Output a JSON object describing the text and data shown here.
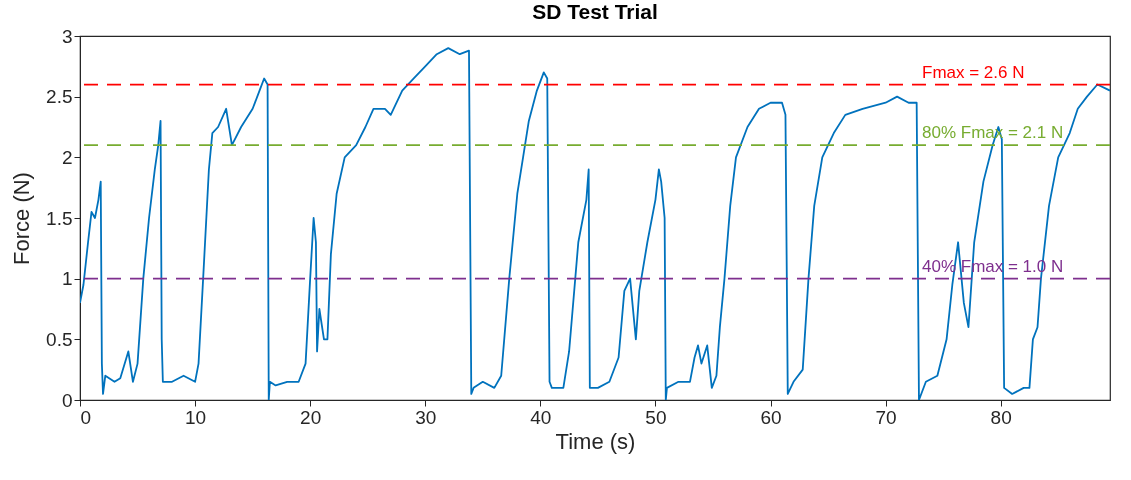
{
  "chart_data": {
    "type": "line",
    "title": "SD Test Trial",
    "xlabel": "Time (s)",
    "ylabel": "Force (N)",
    "xlim": [
      0,
      89.5
    ],
    "xticks": [
      0,
      10,
      20,
      30,
      40,
      50,
      60,
      70,
      80
    ],
    "ylim": [
      0,
      3
    ],
    "yticks": [
      0,
      0.5,
      1,
      1.5,
      2,
      2.5,
      3
    ],
    "grid": false,
    "marker": "none",
    "line_style": "solid",
    "x": [
      0,
      0.3,
      0.7,
      1.0,
      1.3,
      1.6,
      1.8,
      1.9,
      2.0,
      2.2,
      3.0,
      3.5,
      4.2,
      4.6,
      5.0,
      5.5,
      6.0,
      6.5,
      6.8,
      7.0,
      7.1,
      7.2,
      8,
      9,
      10,
      10.3,
      10.7,
      11.2,
      11.5,
      12,
      12.7,
      13.2,
      14,
      15,
      15.6,
      16.0,
      16.3,
      16.4,
      16.5,
      17,
      18,
      19,
      19.6,
      20.0,
      20.3,
      20.5,
      20.6,
      20.8,
      21.2,
      21.5,
      21.8,
      22.3,
      23,
      24,
      24.8,
      25.5,
      26.5,
      27,
      28,
      29,
      30,
      31,
      32,
      33,
      33.8,
      34.0,
      34.2,
      35,
      36,
      36.6,
      37.3,
      38,
      38.5,
      39,
      39.7,
      40.3,
      40.6,
      40.8,
      41,
      42,
      42.5,
      43.3,
      44,
      44.2,
      44.3,
      45,
      46,
      46.8,
      47.3,
      47.8,
      48.3,
      48.6,
      49.3,
      50,
      50.3,
      50.5,
      50.8,
      50.9,
      51,
      52,
      53,
      53.4,
      53.7,
      54,
      54.5,
      54.9,
      55.3,
      55.6,
      56,
      56.5,
      57,
      58,
      59,
      60,
      61,
      61.3,
      61.5,
      62,
      62.8,
      63.3,
      63.8,
      64.5,
      65.5,
      66.5,
      68,
      70,
      71,
      72,
      72.7,
      72.9,
      73.5,
      74.5,
      75.3,
      75.8,
      76.3,
      76.8,
      77.2,
      77.7,
      78.5,
      79.3,
      79.8,
      80.1,
      80.3,
      81,
      82,
      82.5,
      82.8,
      83.2,
      83.5,
      84.2,
      85,
      86,
      86.7,
      87.5,
      88.4,
      89.5
    ],
    "series": [
      {
        "color": "#0072bd",
        "values": [
          0.8,
          0.95,
          1.3,
          1.55,
          1.5,
          1.65,
          1.8,
          0.3,
          0.05,
          0.2,
          0.15,
          0.18,
          0.4,
          0.15,
          0.3,
          1.0,
          1.5,
          1.9,
          2.1,
          2.3,
          0.5,
          0.15,
          0.15,
          0.2,
          0.15,
          0.3,
          1.0,
          1.9,
          2.2,
          2.25,
          2.4,
          2.1,
          2.25,
          2.4,
          2.55,
          2.65,
          2.6,
          0.0,
          0.15,
          0.12,
          0.15,
          0.15,
          0.3,
          1.0,
          1.5,
          1.3,
          0.4,
          0.75,
          0.5,
          0.5,
          1.2,
          1.7,
          2.0,
          2.1,
          2.25,
          2.4,
          2.4,
          2.35,
          2.55,
          2.65,
          2.75,
          2.85,
          2.9,
          2.85,
          2.88,
          0.05,
          0.1,
          0.15,
          0.1,
          0.2,
          1.0,
          1.7,
          2.0,
          2.3,
          2.55,
          2.7,
          2.65,
          0.15,
          0.1,
          0.1,
          0.4,
          1.3,
          1.65,
          1.9,
          0.1,
          0.1,
          0.15,
          0.35,
          0.9,
          1.0,
          0.5,
          0.9,
          1.3,
          1.65,
          1.9,
          1.8,
          1.5,
          0.0,
          0.1,
          0.15,
          0.15,
          0.35,
          0.45,
          0.3,
          0.45,
          0.1,
          0.2,
          0.6,
          1.0,
          1.6,
          2.0,
          2.25,
          2.4,
          2.45,
          2.45,
          2.35,
          0.05,
          0.15,
          0.25,
          1.0,
          1.6,
          2.0,
          2.2,
          2.35,
          2.4,
          2.45,
          2.5,
          2.45,
          2.45,
          0.0,
          0.15,
          0.2,
          0.5,
          0.95,
          1.3,
          0.8,
          0.6,
          1.3,
          1.8,
          2.1,
          2.25,
          2.15,
          0.1,
          0.05,
          0.1,
          0.1,
          0.5,
          0.6,
          1.0,
          1.6,
          2.0,
          2.2,
          2.4,
          2.5,
          2.6,
          2.55
        ]
      }
    ],
    "ref_lines": [
      {
        "axis": "y",
        "value": 2.6,
        "label": "Fmax = 2.6 N",
        "color": "#ff0000",
        "line_style": "dashed"
      },
      {
        "axis": "y",
        "value": 2.1,
        "label": "80% Fmax = 2.1 N",
        "color": "#77ac30",
        "line_style": "dashed"
      },
      {
        "axis": "y",
        "value": 1.0,
        "label": "40% Fmax = 1.0 N",
        "color": "#7e2f8e",
        "line_style": "dashed"
      }
    ]
  }
}
